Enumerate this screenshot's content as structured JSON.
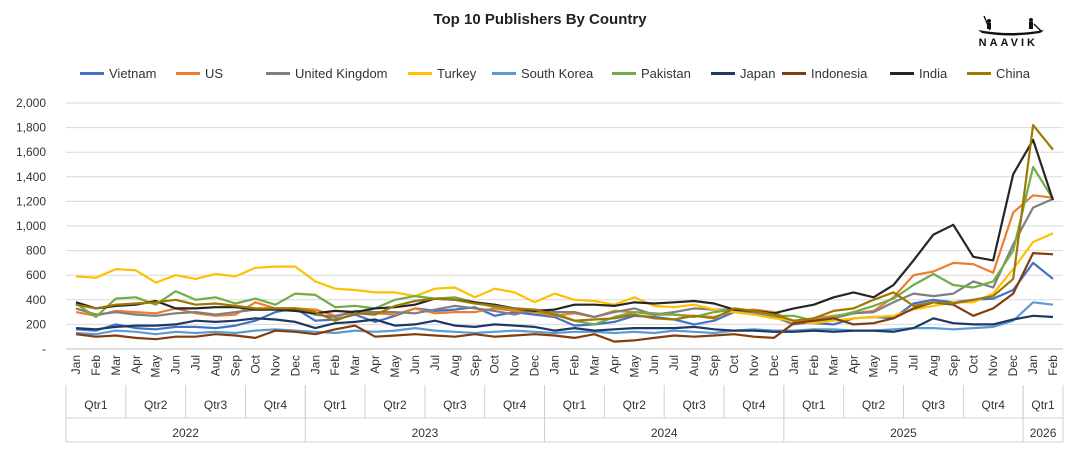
{
  "chart_data": {
    "type": "line",
    "title": "Top 10 Publishers By Country",
    "logo_text": "NAAVIK",
    "ylim": [
      0,
      2000
    ],
    "yticks": [
      "-",
      "200",
      "400",
      "600",
      "800",
      "1,000",
      "1,200",
      "1,400",
      "1,600",
      "1,800",
      "2,000"
    ],
    "grid": "horizontal",
    "legend_position": "top",
    "x": [
      "Jan",
      "Feb",
      "Mar",
      "Apr",
      "May",
      "Jun",
      "Jul",
      "Aug",
      "Sep",
      "Oct",
      "Nov",
      "Dec",
      "Jan",
      "Feb",
      "Mar",
      "Apr",
      "May",
      "Jun",
      "Jul",
      "Aug",
      "Sep",
      "Oct",
      "Nov",
      "Dec",
      "Jan",
      "Feb",
      "Mar",
      "Apr",
      "May",
      "Jun",
      "Jul",
      "Aug",
      "Sep",
      "Oct",
      "Nov",
      "Dec",
      "Jan",
      "Feb",
      "Mar",
      "Apr",
      "May",
      "Jun",
      "Jul",
      "Aug",
      "Sep",
      "Oct",
      "Nov",
      "Dec",
      "Jan",
      "Feb"
    ],
    "quarters": [
      {
        "label": "Qtr1",
        "start": 0,
        "end": 2
      },
      {
        "label": "Qtr2",
        "start": 3,
        "end": 5
      },
      {
        "label": "Qtr3",
        "start": 6,
        "end": 8
      },
      {
        "label": "Qtr4",
        "start": 9,
        "end": 11
      },
      {
        "label": "Qtr1",
        "start": 12,
        "end": 14
      },
      {
        "label": "Qtr2",
        "start": 15,
        "end": 17
      },
      {
        "label": "Qtr3",
        "start": 18,
        "end": 20
      },
      {
        "label": "Qtr4",
        "start": 21,
        "end": 23
      },
      {
        "label": "Qtr1",
        "start": 24,
        "end": 26
      },
      {
        "label": "Qtr2",
        "start": 27,
        "end": 29
      },
      {
        "label": "Qtr3",
        "start": 30,
        "end": 32
      },
      {
        "label": "Qtr4",
        "start": 33,
        "end": 35
      },
      {
        "label": "Qtr1",
        "start": 36,
        "end": 38
      },
      {
        "label": "Qtr2",
        "start": 39,
        "end": 41
      },
      {
        "label": "Qtr3",
        "start": 42,
        "end": 44
      },
      {
        "label": "Qtr4",
        "start": 45,
        "end": 47
      },
      {
        "label": "Qtr1",
        "start": 48,
        "end": 49
      }
    ],
    "years": [
      {
        "label": "2022",
        "start": 0,
        "end": 11
      },
      {
        "label": "2023",
        "start": 12,
        "end": 23
      },
      {
        "label": "2024",
        "start": 24,
        "end": 35
      },
      {
        "label": "2025",
        "start": 36,
        "end": 47
      },
      {
        "label": "2026",
        "start": 48,
        "end": 49
      }
    ],
    "series": [
      {
        "name": "Vietnam",
        "color": "#4472C4",
        "values": [
          160,
          150,
          200,
          170,
          160,
          180,
          180,
          170,
          190,
          230,
          300,
          330,
          230,
          240,
          280,
          220,
          270,
          330,
          310,
          320,
          340,
          270,
          300,
          280,
          260,
          190,
          200,
          220,
          270,
          260,
          240,
          200,
          230,
          300,
          290,
          260,
          230,
          210,
          200,
          250,
          260,
          250,
          370,
          400,
          380,
          400,
          410,
          480,
          700,
          570
        ]
      },
      {
        "name": "US",
        "color": "#ED7D31",
        "values": [
          300,
          270,
          310,
          300,
          290,
          330,
          290,
          270,
          280,
          380,
          330,
          330,
          320,
          270,
          300,
          290,
          280,
          330,
          290,
          300,
          300,
          330,
          310,
          300,
          270,
          290,
          260,
          310,
          300,
          280,
          280,
          270,
          260,
          310,
          320,
          300,
          220,
          250,
          270,
          290,
          310,
          420,
          600,
          630,
          700,
          690,
          620,
          1110,
          1250,
          1230
        ]
      },
      {
        "name": "United Kingdom",
        "color": "#7F7F7F",
        "values": [
          330,
          280,
          300,
          280,
          270,
          290,
          300,
          280,
          300,
          320,
          330,
          320,
          280,
          260,
          310,
          300,
          300,
          290,
          320,
          350,
          330,
          310,
          280,
          320,
          300,
          300,
          260,
          300,
          330,
          280,
          300,
          330,
          320,
          320,
          300,
          260,
          200,
          220,
          250,
          290,
          300,
          380,
          450,
          430,
          450,
          550,
          500,
          850,
          1150,
          1220
        ]
      },
      {
        "name": "Turkey",
        "color": "#FFC000",
        "values": [
          590,
          580,
          650,
          640,
          540,
          600,
          570,
          610,
          590,
          660,
          670,
          670,
          550,
          490,
          480,
          460,
          460,
          430,
          490,
          500,
          420,
          490,
          460,
          380,
          450,
          400,
          390,
          360,
          420,
          350,
          340,
          360,
          320,
          300,
          280,
          250,
          230,
          210,
          230,
          250,
          260,
          270,
          320,
          350,
          380,
          380,
          450,
          650,
          870,
          940
        ]
      },
      {
        "name": "South Korea",
        "color": "#5B9BD5",
        "values": [
          130,
          120,
          150,
          140,
          120,
          140,
          130,
          140,
          130,
          150,
          160,
          150,
          140,
          130,
          150,
          140,
          150,
          170,
          150,
          140,
          130,
          140,
          150,
          140,
          130,
          140,
          140,
          130,
          140,
          130,
          150,
          140,
          130,
          150,
          160,
          150,
          150,
          160,
          160,
          150,
          150,
          160,
          170,
          170,
          160,
          170,
          180,
          230,
          380,
          360
        ]
      },
      {
        "name": "Pakistan",
        "color": "#70AD47",
        "values": [
          370,
          260,
          410,
          420,
          360,
          470,
          400,
          420,
          370,
          410,
          360,
          450,
          440,
          340,
          350,
          330,
          400,
          430,
          410,
          420,
          380,
          340,
          330,
          310,
          290,
          230,
          200,
          260,
          300,
          290,
          280,
          260,
          300,
          320,
          310,
          270,
          270,
          230,
          260,
          300,
          350,
          410,
          520,
          610,
          520,
          500,
          550,
          800,
          1480,
          1220
        ]
      },
      {
        "name": "Japan",
        "color": "#1F3864",
        "values": [
          170,
          160,
          180,
          190,
          190,
          200,
          230,
          220,
          230,
          250,
          240,
          220,
          170,
          210,
          220,
          240,
          190,
          200,
          230,
          190,
          180,
          200,
          190,
          180,
          150,
          170,
          150,
          160,
          170,
          170,
          170,
          180,
          160,
          150,
          150,
          140,
          140,
          150,
          140,
          150,
          150,
          140,
          170,
          250,
          210,
          200,
          200,
          240,
          270,
          260
        ]
      },
      {
        "name": "Indonesia",
        "color": "#843C0C",
        "values": [
          120,
          100,
          110,
          90,
          80,
          100,
          100,
          120,
          110,
          90,
          150,
          140,
          120,
          160,
          190,
          100,
          110,
          120,
          110,
          100,
          120,
          100,
          110,
          120,
          110,
          90,
          120,
          60,
          70,
          90,
          110,
          100,
          110,
          120,
          100,
          90,
          210,
          230,
          250,
          200,
          210,
          250,
          330,
          380,
          360,
          270,
          330,
          450,
          780,
          770
        ]
      },
      {
        "name": "India",
        "color": "#262626",
        "values": [
          380,
          330,
          350,
          360,
          390,
          330,
          330,
          340,
          340,
          320,
          320,
          310,
          290,
          310,
          300,
          330,
          340,
          360,
          410,
          400,
          380,
          360,
          330,
          310,
          320,
          360,
          360,
          350,
          380,
          370,
          380,
          390,
          370,
          320,
          310,
          290,
          330,
          360,
          420,
          460,
          420,
          520,
          720,
          930,
          1010,
          750,
          720,
          1420,
          1700,
          1210
        ]
      },
      {
        "name": "China",
        "color": "#9E7800",
        "values": [
          360,
          330,
          360,
          370,
          380,
          400,
          360,
          370,
          350,
          330,
          330,
          330,
          300,
          230,
          290,
          280,
          350,
          390,
          410,
          400,
          370,
          350,
          330,
          320,
          280,
          230,
          240,
          250,
          280,
          250,
          240,
          270,
          250,
          330,
          310,
          280,
          230,
          250,
          310,
          330,
          400,
          460,
          350,
          380,
          370,
          400,
          430,
          570,
          1820,
          1620
        ]
      }
    ]
  }
}
